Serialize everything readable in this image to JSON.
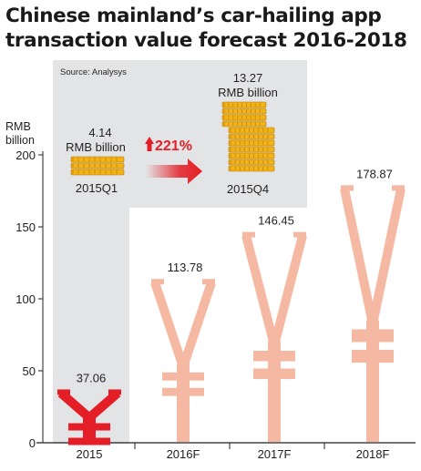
{
  "chart_data": {
    "type": "bar",
    "title": "Chinese mainland’s car-hailing app transaction value forecast 2016-2018",
    "source": "Source: Analysys",
    "ylabel": "RMB billion",
    "ylim": [
      0,
      200
    ],
    "yticks": [
      0,
      50,
      100,
      150,
      200
    ],
    "categories": [
      "2015",
      "2016F",
      "2017F",
      "2018F"
    ],
    "values": [
      37.06,
      113.78,
      146.45,
      178.87
    ],
    "value_labels": [
      "37.06",
      "113.78",
      "146.45",
      "178.87"
    ],
    "grid": false,
    "inset": {
      "from": {
        "value": 4.14,
        "value_label": "4.14",
        "unit": "RMB billion",
        "period": "2015Q1"
      },
      "to": {
        "value": 13.27,
        "value_label": "13.27",
        "unit": "RMB billion",
        "period": "2015Q4"
      },
      "growth": "221%",
      "growth_arrow_icon": "up-arrow-icon",
      "transition_arrow_icon": "right-arrow-icon",
      "coin_icon": "gold-coin-stack-icon"
    },
    "bar_icon": "yuan-symbol-icon",
    "colors": {
      "bar_highlight": "#e41e26",
      "bar_forecast": "#f5b9a3",
      "panel": "#e3e4e5",
      "accent": "#e41e26",
      "coin": "#f2b316"
    }
  }
}
